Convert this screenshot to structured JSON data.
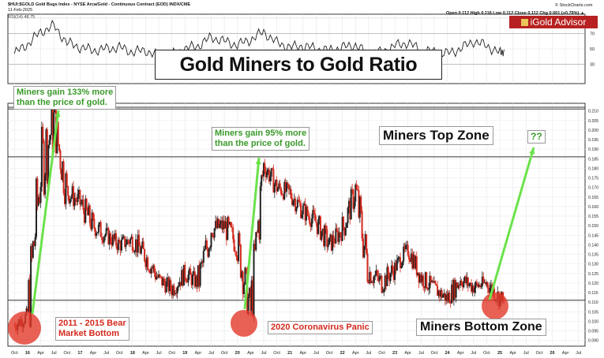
{
  "header": {
    "symbol_line": "$HUI:$GOLD Gold Bugs Index - NYSE Arca/Gold - Continuous Contract (EOD) INDX/CME",
    "date": "11-Feb-2025",
    "ohlc": "Open 0.112  High 0.116  Low 0.112  Close 0.112  Chg 0.001 (+0.79%) ▲",
    "source": "© StockCharts.com",
    "rsi_label": "RSI(14) 48.75",
    "logo": "iGold Advisor"
  },
  "colors": {
    "up": "#222222",
    "down": "#d42a1e",
    "arrow": "#6be24a",
    "circle": "#e23a2a",
    "green_text": "#3a9a2a"
  },
  "annotations": {
    "title": "Gold Miners to Gold Ratio",
    "gain1": [
      "Miners gain 133% more",
      "than the price of gold."
    ],
    "gain2": [
      "Miners gain 95% more",
      "than the price of gold."
    ],
    "top_zone": "Miners Top Zone",
    "question": "??",
    "bottom1": [
      "2011 - 2015 Bear",
      "Market Bottom"
    ],
    "bottom2": "2020 Coronavirus Panic",
    "bottom_zone": "Miners Bottom Zone"
  },
  "chart_data": [
    {
      "type": "line",
      "name": "RSI(14)",
      "ylim": [
        5,
        95
      ],
      "ticks": [
        30,
        50,
        70,
        90
      ],
      "grid": true,
      "x": [
        "Oct 15",
        "Jan 16",
        "Apr 16",
        "Jul 16",
        "Oct 16",
        "Jan 17",
        "Apr 17",
        "Jul 17",
        "Oct 17",
        "Jan 18",
        "Apr 18",
        "Jul 18",
        "Oct 18",
        "Jan 19",
        "Apr 19",
        "Jul 19",
        "Oct 19",
        "Jan 20",
        "Apr 20",
        "Jul 20",
        "Oct 20",
        "Jan 21",
        "Apr 21",
        "Jul 21",
        "Oct 21",
        "Jan 22",
        "Apr 22",
        "Jul 22",
        "Oct 22",
        "Jan 23",
        "Apr 23",
        "Jul 23",
        "Oct 23",
        "Jan 24",
        "Apr 24",
        "Jul 24",
        "Oct 24",
        "Jan 25",
        "Feb 25"
      ],
      "values": [
        44,
        56,
        72,
        80,
        58,
        52,
        48,
        50,
        52,
        46,
        48,
        40,
        42,
        50,
        54,
        65,
        60,
        55,
        62,
        72,
        58,
        52,
        54,
        50,
        48,
        52,
        55,
        42,
        46,
        54,
        58,
        48,
        46,
        44,
        50,
        60,
        54,
        45,
        49
      ]
    },
    {
      "type": "candlestick",
      "title": "Gold Miners to Gold Ratio",
      "ylim": [
        0.087,
        0.214
      ],
      "yticks": [
        0.09,
        0.095,
        0.1,
        0.105,
        0.11,
        0.115,
        0.12,
        0.125,
        0.13,
        0.135,
        0.14,
        0.145,
        0.15,
        0.155,
        0.16,
        0.165,
        0.17,
        0.175,
        0.18,
        0.185,
        0.19,
        0.195,
        0.2,
        0.205,
        0.21
      ],
      "x_tick_labels": [
        "Oct",
        "16",
        "Apr",
        "Jul",
        "Oct",
        "17",
        "Apr",
        "Jul",
        "Oct",
        "18",
        "Apr",
        "Jul",
        "Oct",
        "19",
        "Apr",
        "Jul",
        "Oct",
        "20",
        "Apr",
        "Jul",
        "Oct",
        "21",
        "Apr",
        "Jul",
        "Oct",
        "22",
        "Apr",
        "Jul",
        "Oct",
        "23",
        "Apr",
        "Jul",
        "Oct",
        "24",
        "Apr",
        "Jul",
        "Oct",
        "25",
        "Apr",
        "Jul",
        "Oct",
        "26",
        "Apr",
        "Jul"
      ],
      "x": [
        "Oct 15",
        "Jan 16",
        "Apr 16",
        "Jul 16",
        "Oct 16",
        "Jan 17",
        "Apr 17",
        "Jul 17",
        "Oct 17",
        "Jan 18",
        "Apr 18",
        "Jul 18",
        "Oct 18",
        "Jan 19",
        "Apr 19",
        "Jul 19",
        "Oct 19",
        "Jan 20",
        "Apr 20",
        "Jul 20",
        "Oct 20",
        "Jan 21",
        "Apr 21",
        "Jul 21",
        "Oct 21",
        "Jan 22",
        "Apr 22",
        "Jul 22",
        "Oct 22",
        "Jan 23",
        "Apr 23",
        "Jul 23",
        "Oct 23",
        "Jan 24",
        "Apr 24",
        "Jul 24",
        "Oct 24",
        "Jan 25",
        "Feb 25"
      ],
      "values": [
        0.098,
        0.103,
        0.18,
        0.205,
        0.168,
        0.162,
        0.15,
        0.145,
        0.14,
        0.143,
        0.134,
        0.122,
        0.117,
        0.125,
        0.12,
        0.148,
        0.15,
        0.14,
        0.105,
        0.182,
        0.17,
        0.167,
        0.158,
        0.152,
        0.14,
        0.148,
        0.168,
        0.126,
        0.12,
        0.128,
        0.138,
        0.123,
        0.117,
        0.112,
        0.122,
        0.118,
        0.12,
        0.112,
        0.112
      ],
      "lows": [
        0.091,
        0.096,
        0.12,
        0.19,
        0.155,
        0.152,
        0.14,
        0.136,
        0.132,
        0.135,
        0.125,
        0.114,
        0.11,
        0.117,
        0.112,
        0.135,
        0.142,
        0.128,
        0.102,
        0.17,
        0.16,
        0.158,
        0.15,
        0.142,
        0.132,
        0.14,
        0.155,
        0.115,
        0.11,
        0.12,
        0.128,
        0.115,
        0.11,
        0.106,
        0.113,
        0.11,
        0.112,
        0.106,
        0.108
      ],
      "highs": [
        0.103,
        0.11,
        0.195,
        0.213,
        0.18,
        0.172,
        0.16,
        0.153,
        0.148,
        0.152,
        0.142,
        0.13,
        0.124,
        0.133,
        0.128,
        0.158,
        0.16,
        0.152,
        0.125,
        0.186,
        0.18,
        0.176,
        0.166,
        0.16,
        0.148,
        0.156,
        0.176,
        0.138,
        0.127,
        0.136,
        0.14,
        0.132,
        0.125,
        0.12,
        0.13,
        0.128,
        0.128,
        0.12,
        0.115
      ],
      "horizontal_lines": [
        0.211,
        0.186,
        0.111
      ]
    }
  ]
}
